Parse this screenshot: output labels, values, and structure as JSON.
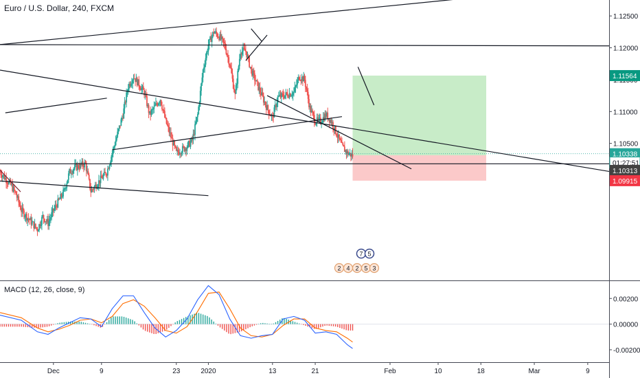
{
  "symbol_title": "Euro / U.S. Dollar, 240, FXCM",
  "macd_title": "MACD (12, 26, close, 9)",
  "colors": {
    "up": "#26a69a",
    "down": "#ef5350",
    "price_line": "#26a69a",
    "tp_zone": "#c8ecc8",
    "sl_zone": "#fbc9c9",
    "tp_label": "#089981",
    "sl_label": "#f23645",
    "last_label": "#424242",
    "macd_line": "#2962ff",
    "signal_line": "#ff6d00",
    "hist_up": "#26a69a",
    "hist_down": "#ef5350"
  },
  "chart_data": {
    "type": "candlestick",
    "price_ylim": [
      1.0835,
      1.1275
    ],
    "price_ticks": [
      "1.12500",
      "1.12000",
      "1.11500",
      "1.11000",
      "1.10500"
    ],
    "price_tick_values": [
      1.125,
      1.12,
      1.115,
      1.11,
      1.105
    ],
    "x_ticks": [
      "Dec",
      "9",
      "23",
      "2020",
      "13",
      "21",
      "Feb",
      "10",
      "18",
      "Mar",
      "9"
    ],
    "x_tick_days": [
      10,
      19,
      33,
      39,
      51,
      59,
      73,
      82,
      90,
      100,
      110
    ],
    "days_shown": [
      0,
      114
    ],
    "price_path": [
      [
        0,
        1.1005
      ],
      [
        2,
        1.0985
      ],
      [
        3,
        1.097
      ],
      [
        4,
        1.0945
      ],
      [
        6,
        1.0925
      ],
      [
        7,
        1.0915
      ],
      [
        8,
        1.0935
      ],
      [
        9,
        1.0925
      ],
      [
        10,
        1.0945
      ],
      [
        12,
        1.0975
      ],
      [
        13,
        1.1005
      ],
      [
        14,
        1.1012
      ],
      [
        16,
        1.1018
      ],
      [
        17,
        1.0975
      ],
      [
        18,
        1.0985
      ],
      [
        20,
        1.1005
      ],
      [
        22,
        1.1065
      ],
      [
        23,
        1.1095
      ],
      [
        24,
        1.114
      ],
      [
        25,
        1.1155
      ],
      [
        27,
        1.113
      ],
      [
        28,
        1.1095
      ],
      [
        30,
        1.112
      ],
      [
        31,
        1.1085
      ],
      [
        33,
        1.1035
      ],
      [
        35,
        1.1045
      ],
      [
        36,
        1.1055
      ],
      [
        37,
        1.1095
      ],
      [
        38,
        1.1165
      ],
      [
        39,
        1.1205
      ],
      [
        40,
        1.1225
      ],
      [
        41,
        1.1218
      ],
      [
        42,
        1.1205
      ],
      [
        43,
        1.1175
      ],
      [
        44,
        1.1125
      ],
      [
        45,
        1.1195
      ],
      [
        46,
        1.1195
      ],
      [
        47,
        1.1165
      ],
      [
        48,
        1.1145
      ],
      [
        49,
        1.1125
      ],
      [
        50,
        1.1105
      ],
      [
        51,
        1.109
      ],
      [
        52,
        1.1122
      ],
      [
        53,
        1.1125
      ],
      [
        55,
        1.113
      ],
      [
        56,
        1.1155
      ],
      [
        57,
        1.115
      ],
      [
        58,
        1.1105
      ],
      [
        59,
        1.1085
      ],
      [
        60,
        1.1085
      ],
      [
        61,
        1.1095
      ],
      [
        62,
        1.1085
      ],
      [
        63,
        1.1065
      ],
      [
        64,
        1.1045
      ],
      [
        65,
        1.1035
      ],
      [
        66,
        1.1031
      ]
    ],
    "macd": {
      "ylim": [
        -0.0027,
        0.0033
      ],
      "ticks": [
        "0.00200",
        "0.00000",
        "-0.00200"
      ],
      "tick_values": [
        0.002,
        0.0,
        -0.002
      ],
      "macd_path": [
        [
          0,
          0.0007
        ],
        [
          4,
          0.0003
        ],
        [
          7,
          -0.0006
        ],
        [
          9,
          -0.0008
        ],
        [
          11,
          -0.0003
        ],
        [
          13,
          0.0001
        ],
        [
          15,
          0.0005
        ],
        [
          17,
          0.0004
        ],
        [
          19,
          -0.0002
        ],
        [
          21,
          0.0012
        ],
        [
          23,
          0.0022
        ],
        [
          25,
          0.0022
        ],
        [
          27,
          0.0009
        ],
        [
          29,
          -0.0003
        ],
        [
          31,
          -0.001
        ],
        [
          33,
          -0.0005
        ],
        [
          35,
          0.0004
        ],
        [
          37,
          0.0019
        ],
        [
          39,
          0.003
        ],
        [
          41,
          0.0023
        ],
        [
          43,
          0.0004
        ],
        [
          45,
          -0.0009
        ],
        [
          47,
          -0.0011
        ],
        [
          49,
          -0.0009
        ],
        [
          51,
          -0.0008
        ],
        [
          53,
          0.0004
        ],
        [
          55,
          0.0006
        ],
        [
          57,
          0.0003
        ],
        [
          59,
          -0.0007
        ],
        [
          61,
          -0.0006
        ],
        [
          63,
          -0.0008
        ],
        [
          65,
          -0.0016
        ],
        [
          66,
          -0.0019
        ]
      ],
      "signal_path": [
        [
          0,
          0.0009
        ],
        [
          4,
          0.0005
        ],
        [
          7,
          -0.0003
        ],
        [
          9,
          -0.0006
        ],
        [
          11,
          -0.0004
        ],
        [
          13,
          -0.0001
        ],
        [
          15,
          0.0003
        ],
        [
          17,
          0.0004
        ],
        [
          19,
          0.0001
        ],
        [
          21,
          0.0006
        ],
        [
          23,
          0.0016
        ],
        [
          25,
          0.0019
        ],
        [
          27,
          0.0014
        ],
        [
          29,
          0.0005
        ],
        [
          31,
          -0.0005
        ],
        [
          33,
          -0.0007
        ],
        [
          35,
          -0.0002
        ],
        [
          37,
          0.001
        ],
        [
          39,
          0.0024
        ],
        [
          41,
          0.0025
        ],
        [
          43,
          0.0012
        ],
        [
          45,
          -0.0003
        ],
        [
          47,
          -0.0009
        ],
        [
          49,
          -0.001
        ],
        [
          51,
          -0.0008
        ],
        [
          53,
          -0.0001
        ],
        [
          55,
          0.0004
        ],
        [
          57,
          0.0004
        ],
        [
          59,
          -0.0003
        ],
        [
          61,
          -0.0005
        ],
        [
          63,
          -0.0006
        ],
        [
          65,
          -0.0011
        ],
        [
          66,
          -0.0014
        ]
      ]
    }
  },
  "price_labels": [
    {
      "name": "take-profit-label",
      "value": 1.11564,
      "text": "1.11564",
      "color": "#089981"
    },
    {
      "name": "current-price-label",
      "value": 1.10338,
      "text": "1.10338",
      "color": "#26a69a"
    },
    {
      "name": "countdown-label",
      "value": 1.102,
      "text": "01:27:51",
      "color": "#ffffff",
      "textColor": "#131722",
      "border": "#26a69a"
    },
    {
      "name": "last-price-label",
      "value": 1.10313,
      "text": "1.10313",
      "color": "#424242",
      "offset": 22
    },
    {
      "name": "stop-loss-label",
      "value": 1.09915,
      "text": "1.09915",
      "color": "#f23645"
    }
  ],
  "position": {
    "entry": 1.10313,
    "take_profit": 1.11564,
    "stop_loss": 1.09915,
    "start_day": 66,
    "end_day": 91
  },
  "event_badges": {
    "row1": [
      "7",
      "5"
    ],
    "row2": [
      "2",
      "4",
      "2",
      "5",
      "3"
    ]
  }
}
